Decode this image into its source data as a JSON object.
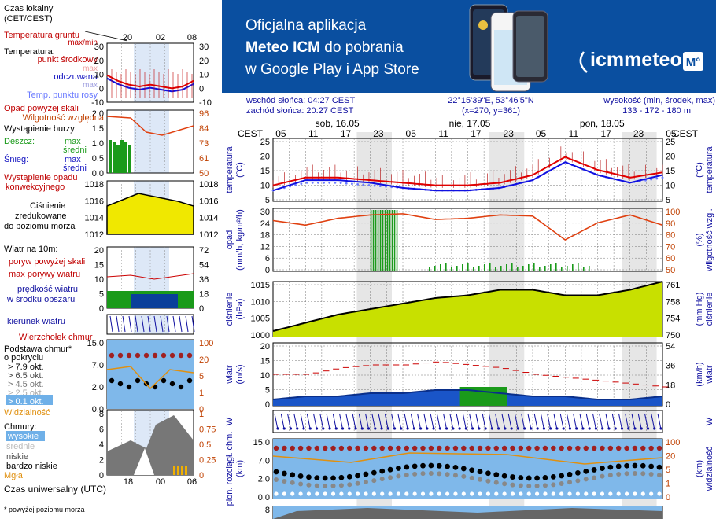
{
  "legend": {
    "local_time_title_1": "Czas lokalny",
    "local_time_title_2": "(CET/CEST)",
    "ground_temp": "Temperatura gruntu",
    "ground_temp_sub": "max/min",
    "temperature": "Temperatura:",
    "mid_point": "punkt środkowy",
    "mid_max": "max",
    "mid_min": "min",
    "felt": "odczuwana",
    "felt_max": "max",
    "felt_min": "min",
    "dew": "Temp. punktu rosy",
    "precip_above": "Opad powyżej skali",
    "humidity": "Wilgotność względna",
    "storm": "Wystąpienie burzy",
    "rain": "Deszcz:",
    "rain_max": "max",
    "rain_mid": "średni",
    "snow": "Śnieg:",
    "snow_max": "max",
    "snow_mid": "średni",
    "precip_occ_1": "Wystąpienie opadu",
    "precip_occ_2": "konwekcyjnego",
    "pressure_1": "Ciśnienie",
    "pressure_2": "zredukowane",
    "pressure_3": "do poziomu morza",
    "wind_at": "Wiatr na 10m:",
    "gust_above": "poryw powyżej skali",
    "gust_max": "max porywy wiatru",
    "wind_speed_1": "prędkość wiatru",
    "wind_speed_2": "w środku obszaru",
    "wind_dir": "kierunek wiatru",
    "cloud_top": "Wierzchołek chmur",
    "cloud_base_1": "Podstawa chmur*",
    "cloud_base_2": "o pokryciu",
    "okt": [
      "> 7.9 okt.",
      "> 6.5 okt.",
      "> 4.5 okt.",
      "> 2.5 okt.",
      "> 0.1 okt."
    ],
    "visibility": "Widzialność",
    "clouds": "Chmury:",
    "cloud_levels": [
      "wysokie",
      "średnie",
      "niskie",
      "bardzo niskie"
    ],
    "fog": "Mgła",
    "utc": "Czas uniwersalny (UTC)",
    "footnote": "* powyżej poziomu morza",
    "top_hours": [
      "20",
      "02",
      "08"
    ],
    "bottom_hours": [
      "18",
      "00",
      "06"
    ],
    "ax_temp_left": [
      "30",
      "20",
      "10",
      "0",
      "-10"
    ],
    "ax_temp_right": [
      "30",
      "20",
      "10",
      "0",
      "-10"
    ],
    "ax_rain_left": [
      "2.0",
      "1.5",
      "1.0",
      "0.5",
      "0.0"
    ],
    "ax_rain_right": [
      "96",
      "84",
      "73",
      "61",
      "50"
    ],
    "ax_press_left": [
      "1018",
      "1016",
      "1014",
      "1012"
    ],
    "ax_press_right": [
      "1018",
      "1016",
      "1014",
      "1012"
    ],
    "ax_wind_left": [
      "20",
      "15",
      "10",
      "5",
      "0"
    ],
    "ax_wind_right": [
      "72",
      "54",
      "36",
      "18",
      "0"
    ],
    "ax_cloud_left": [
      "15.0",
      "7.0",
      "2.0",
      "0.0"
    ],
    "ax_cloud_right": [
      "100",
      "20",
      "5",
      "1",
      "0"
    ],
    "ax_cover_left": [
      "8",
      "6",
      "4",
      "2",
      "0"
    ],
    "ax_cover_right": [
      "1",
      "0.75",
      "0.5",
      "0.25",
      "0"
    ]
  },
  "banner": {
    "line1": "Oficjalna aplikacja",
    "line2_bold": "Meteo ICM",
    "line2_rest": " do pobrania",
    "line3": "w Google Play i App Store",
    "logo": "icmmeteo",
    "logo_badge": "M°",
    "colors": {
      "bg": "#0a4fa0",
      "text": "#ffffff"
    }
  },
  "info": {
    "sunrise": "wschód słońca: 04:27 CEST",
    "sunset": "zachód słońca: 20:27 CEST",
    "coords": "22°15'39\"E, 53°46'5\"N",
    "grid": "(x=270,  y=361)",
    "height_label": "wysokość (min, środek, max)",
    "height_values": "133 - 172 - 180 m"
  },
  "main": {
    "cest": "CEST",
    "days": [
      "sob, 16.05",
      "nie, 17.05",
      "pon, 18.05"
    ],
    "hours": [
      "05",
      "11",
      "17",
      "23",
      "05",
      "11",
      "17",
      "23",
      "05",
      "11",
      "17",
      "23",
      "05"
    ],
    "panels": {
      "temp": {
        "left_label": "temperatura",
        "left_unit": "(°C)",
        "right_label": "temperatura",
        "right_unit": "(°C)",
        "ticks_left": [
          "25",
          "20",
          "15",
          "10",
          "5"
        ],
        "ticks_right": [
          "25",
          "20",
          "15",
          "10",
          "5"
        ]
      },
      "precip": {
        "left_label": "opad",
        "left_unit": "(mm/h, kg/m²/h)",
        "right_label": "wilgotność wzgl.",
        "right_unit": "(%)",
        "ticks_left": [
          "30",
          "24",
          "18",
          "12",
          "6",
          "0"
        ],
        "ticks_right": [
          "100",
          "90",
          "80",
          "70",
          "60",
          "50"
        ]
      },
      "pressure": {
        "left_label": "ciśnienie",
        "left_unit": "(hPa)",
        "right_label": "ciśnienie",
        "right_unit": "(mm Hg)",
        "ticks_left": [
          "1015",
          "1010",
          "1005",
          "1000"
        ],
        "ticks_right": [
          "761",
          "758",
          "754",
          "750"
        ]
      },
      "wind": {
        "left_label": "wiatr",
        "left_unit": "(m/s)",
        "right_label": "wiatr",
        "right_unit": "(km/h)",
        "ticks_left": [
          "20",
          "15",
          "10",
          "5",
          "0"
        ],
        "ticks_right": [
          "54",
          "36",
          "18",
          "0"
        ]
      },
      "winddir": {
        "left_label": "W",
        "right_label": "W"
      },
      "cloud": {
        "left_label": "pion. rozciągł. chm.",
        "left_unit": "(km)",
        "right_label": "widzialność",
        "right_unit": "(km)",
        "ticks_left": [
          "15.0",
          "7.0",
          "2.0",
          "0.0"
        ],
        "ticks_right": [
          "100",
          "20",
          "5",
          "1",
          "0"
        ]
      },
      "cover": {
        "ticks_left": [
          "8"
        ]
      }
    }
  },
  "chart_data": {
    "type": "line",
    "x": [
      "05",
      "11",
      "17",
      "23",
      "05",
      "11",
      "17",
      "23",
      "05",
      "11",
      "17",
      "23",
      "05"
    ],
    "series": [
      {
        "name": "temperatura",
        "values": [
          8,
          11,
          11,
          10,
          9,
          8,
          8,
          9,
          12,
          19,
          14,
          11,
          13
        ]
      },
      {
        "name": "odczuwana",
        "values": [
          6,
          10,
          10,
          9,
          7,
          6,
          6,
          7,
          10,
          17,
          12,
          9,
          12
        ]
      },
      {
        "name": "wilgotność",
        "values": [
          92,
          88,
          94,
          97,
          98,
          93,
          94,
          97,
          96,
          75,
          90,
          97,
          88
        ]
      },
      {
        "name": "ciśnienie",
        "values": [
          1000,
          1003,
          1006,
          1008,
          1010,
          1012,
          1013,
          1015,
          1015,
          1013,
          1013,
          1015,
          1018
        ]
      },
      {
        "name": "prędkość wiatru",
        "values": [
          2,
          3,
          3,
          4,
          4,
          5,
          5,
          4,
          3,
          3,
          2,
          2,
          3
        ]
      },
      {
        "name": "porywy",
        "values": [
          10,
          10,
          12,
          13,
          13,
          14,
          13,
          12,
          10,
          9,
          8,
          7,
          6
        ]
      }
    ],
    "ylim_temp": [
      3,
      25
    ],
    "ylim_precip": [
      0,
      30
    ],
    "ylim_pressure": [
      998,
      1018
    ],
    "ylim_wind": [
      0,
      20
    ],
    "colors": {
      "temp": "#e00000",
      "felt": "#1010e0",
      "dew": "#6b7bff",
      "humidity": "#e04010",
      "pressure_fill": "#c8e000",
      "rain": "#1a9a1a",
      "wind_fill": "#1a55c8",
      "gust": "#cc0000",
      "cloud_bg": "#7fb8ea",
      "visibility": "#e09010"
    }
  }
}
